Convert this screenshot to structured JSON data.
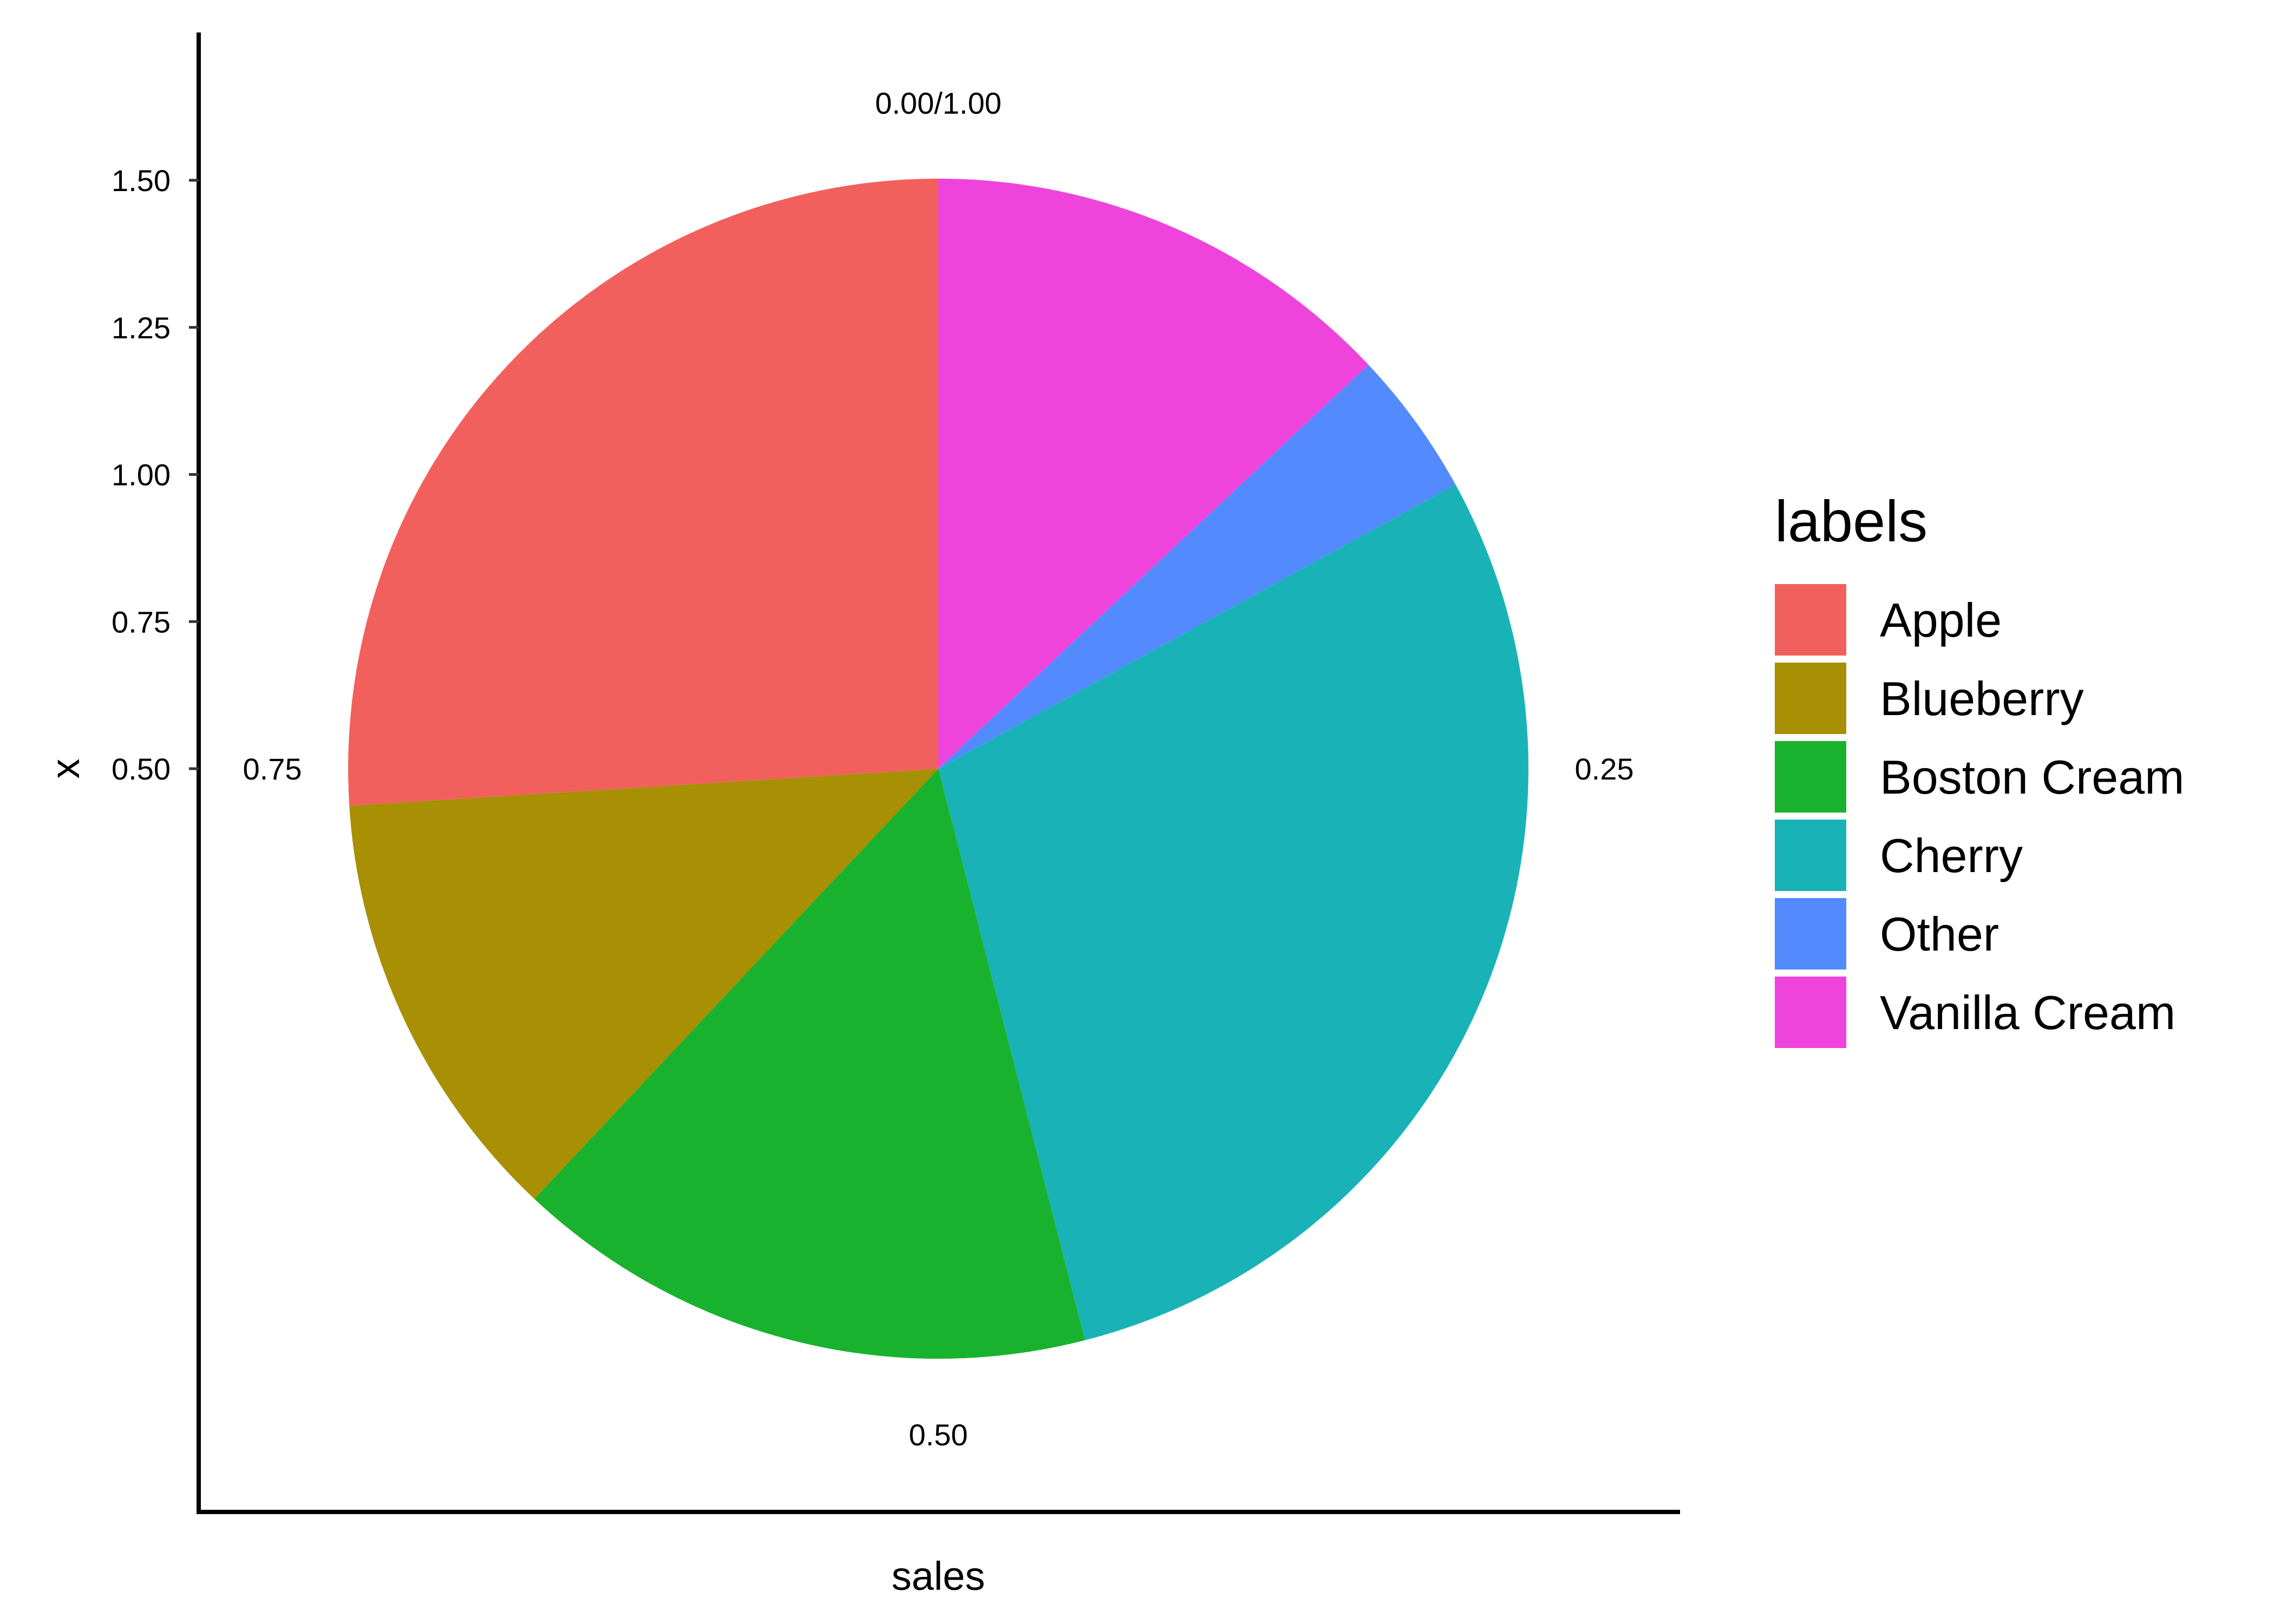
{
  "chart_data": {
    "type": "pie",
    "xlabel": "sales",
    "ylabel": "x",
    "y_ticks": [
      "1.50",
      "1.25",
      "1.00",
      "0.75",
      "0.50"
    ],
    "y_tick_values": [
      1.5,
      1.25,
      1.0,
      0.75,
      0.5
    ],
    "ylim": [
      0.5,
      1.5
    ],
    "angle_labels": [
      {
        "text": "0.00/1.00",
        "value": 0.0
      },
      {
        "text": "0.25",
        "value": 0.25
      },
      {
        "text": "0.50",
        "value": 0.5
      },
      {
        "text": "0.75",
        "value": 0.75
      }
    ],
    "legend_title": "labels",
    "legend_position": "right",
    "grid": false,
    "categories": [
      "Apple",
      "Blueberry",
      "Boston Cream",
      "Cherry",
      "Other",
      "Vanilla Cream"
    ],
    "values": [
      0.26,
      0.12,
      0.16,
      0.29,
      0.04,
      0.13
    ],
    "colors": {
      "Apple": "#F2605D",
      "Blueberry": "#A88F03",
      "Boston Cream": "#19B22E",
      "Cherry": "#19B3B7",
      "Other": "#538AFE",
      "Vanilla Cream": "#EE44DC"
    },
    "stack_order": [
      "Vanilla Cream",
      "Other",
      "Cherry",
      "Boston Cream",
      "Blueberry",
      "Apple"
    ]
  }
}
